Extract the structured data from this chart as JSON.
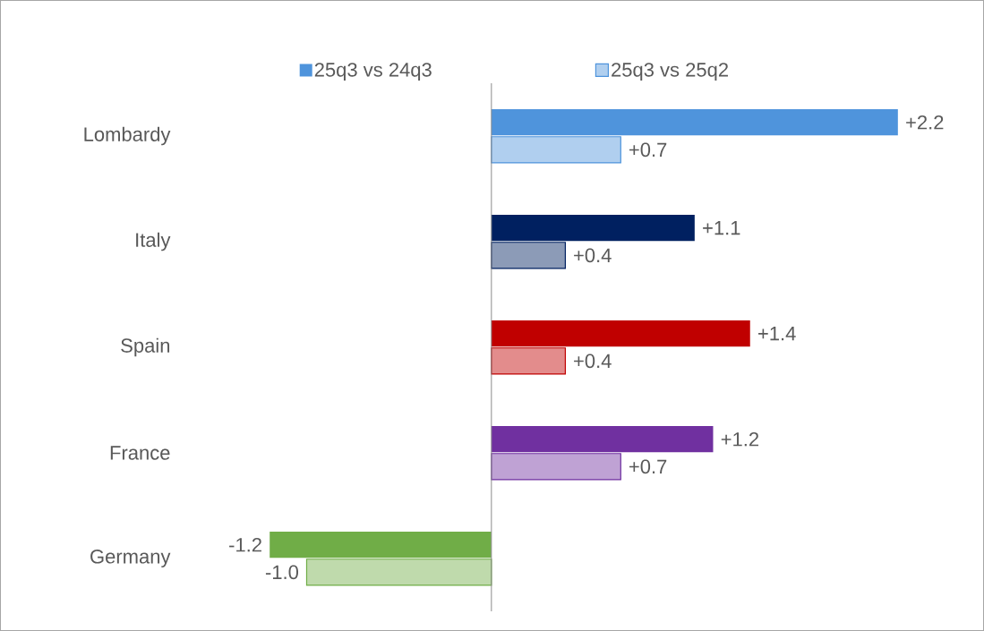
{
  "chart_data": {
    "type": "bar",
    "orientation": "horizontal",
    "legend": "top",
    "categories": [
      "Lombardy",
      "Italy",
      "Spain",
      "France",
      "Germany"
    ],
    "series": [
      {
        "name": "25q3 vs 24q3",
        "color": "#4f94dc",
        "colors": [
          "#4f94dc",
          "#002060",
          "#c00000",
          "#7030a0",
          "#70ad47"
        ],
        "values": [
          2.2,
          1.1,
          1.4,
          1.2,
          -1.2
        ],
        "value_labels": [
          "+2.2",
          "+1.1",
          "+1.4",
          "+1.2",
          "-1.2"
        ]
      },
      {
        "name": "25q3 vs 25q2",
        "color": "#4f94dc",
        "colors": [
          "#4f94dc",
          "#002060",
          "#c00000",
          "#7030a0",
          "#70ad47"
        ],
        "values": [
          0.7,
          0.4,
          0.4,
          0.7,
          -1.0
        ],
        "value_labels": [
          "+0.7",
          "+0.4",
          "+0.4",
          "+0.7",
          "-1.0"
        ]
      }
    ]
  }
}
